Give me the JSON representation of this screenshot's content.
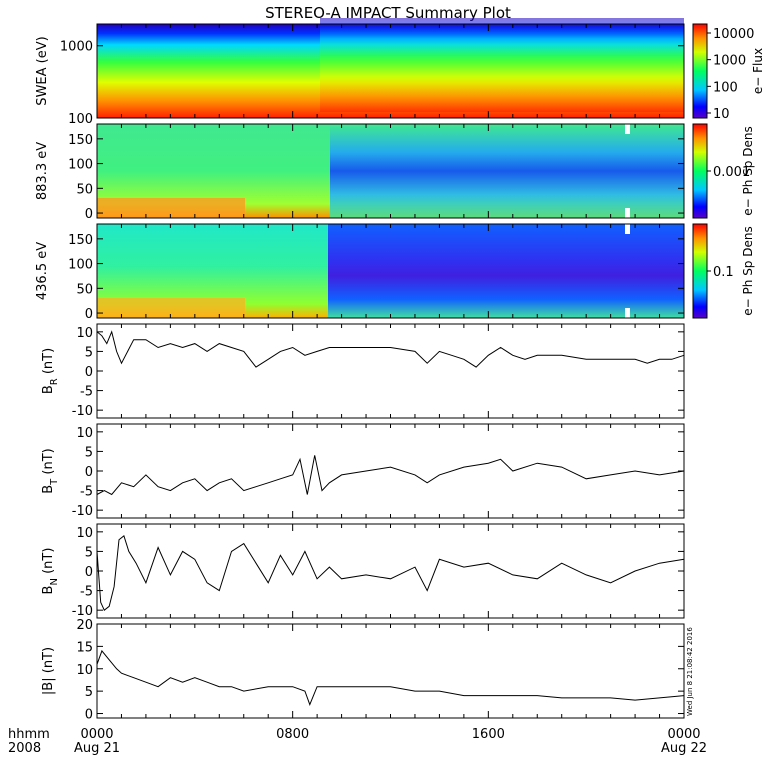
{
  "title": "STEREO-A IMPACT Summary Plot",
  "chart_data": [
    {
      "type": "heatmap",
      "ylabel": "SWEA (eV)",
      "ylog": true,
      "ylim": [
        100,
        2000
      ],
      "yticks": [
        "1000",
        "100"
      ],
      "colorbar": {
        "label": "e− Flux",
        "log": true,
        "ticks": [
          "10000",
          "1000",
          "100",
          "10"
        ]
      }
    },
    {
      "type": "heatmap",
      "ylabel": "883.3 eV",
      "ylim": [
        -10,
        180
      ],
      "yticks": [
        "150",
        "100",
        "50",
        "0"
      ],
      "colorbar": {
        "label": "e− Ph Sp Dens",
        "log": true,
        "ticks": [
          "0.001"
        ]
      }
    },
    {
      "type": "heatmap",
      "ylabel": "436.5 eV",
      "ylim": [
        -10,
        180
      ],
      "yticks": [
        "150",
        "100",
        "50",
        "0"
      ],
      "colorbar": {
        "label": "e− Ph Sp Dens",
        "log": true,
        "ticks": [
          "0.1"
        ]
      }
    },
    {
      "type": "line",
      "ylabel": "B",
      "ysub": "R",
      "yunit": " (nT)",
      "ylim": [
        -12,
        12
      ],
      "yticks": [
        "10",
        "5",
        "0",
        "-5",
        "-10"
      ],
      "series": [
        {
          "x": [
            0,
            0.2,
            0.4,
            0.6,
            0.8,
            1,
            1.5,
            2,
            2.5,
            3,
            3.5,
            4,
            4.5,
            5,
            5.5,
            6,
            6.5,
            7,
            7.5,
            8,
            8.5,
            9,
            9.5,
            10,
            11,
            12,
            13,
            13.5,
            14,
            14.5,
            15,
            15.5,
            16,
            16.5,
            17,
            17.5,
            18,
            19,
            20,
            21,
            22,
            22.5,
            23,
            23.5,
            24
          ],
          "y": [
            10,
            9,
            7,
            10,
            5,
            2,
            8,
            8,
            6,
            7,
            6,
            7,
            5,
            7,
            6,
            5,
            1,
            3,
            5,
            6,
            4,
            5,
            6,
            6,
            6,
            6,
            5,
            2,
            5,
            4,
            3,
            1,
            4,
            6,
            4,
            3,
            4,
            4,
            3,
            3,
            3,
            2,
            3,
            3,
            4
          ]
        }
      ]
    },
    {
      "type": "line",
      "ylabel": "B",
      "ysub": "T",
      "yunit": " (nT)",
      "ylim": [
        -12,
        12
      ],
      "yticks": [
        "10",
        "5",
        "0",
        "-5",
        "-10"
      ],
      "series": [
        {
          "x": [
            0,
            0.3,
            0.6,
            1,
            1.5,
            2,
            2.5,
            3,
            3.5,
            4,
            4.5,
            5,
            5.5,
            6,
            6.5,
            7,
            7.5,
            8,
            8.3,
            8.6,
            8.9,
            9.2,
            9.5,
            10,
            11,
            12,
            13,
            13.5,
            14,
            15,
            16,
            16.5,
            17,
            18,
            19,
            20,
            21,
            22,
            23,
            24
          ],
          "y": [
            -6,
            -5,
            -6,
            -3,
            -4,
            -1,
            -4,
            -5,
            -3,
            -2,
            -5,
            -3,
            -2,
            -5,
            -4,
            -3,
            -2,
            -1,
            3,
            -6,
            4,
            -5,
            -3,
            -1,
            0,
            1,
            -1,
            -3,
            -1,
            1,
            2,
            3,
            0,
            2,
            1,
            -2,
            -1,
            0,
            -1,
            0
          ]
        }
      ]
    },
    {
      "type": "line",
      "ylabel": "B",
      "ysub": "N",
      "yunit": " (nT)",
      "ylim": [
        -12,
        12
      ],
      "yticks": [
        "10",
        "5",
        "0",
        "-5",
        "-10"
      ],
      "series": [
        {
          "x": [
            0,
            0.15,
            0.3,
            0.5,
            0.7,
            0.9,
            1.1,
            1.3,
            1.6,
            2,
            2.5,
            3,
            3.5,
            4,
            4.5,
            5,
            5.5,
            6,
            6.5,
            7,
            7.5,
            8,
            8.5,
            9,
            9.5,
            10,
            11,
            12,
            13,
            13.5,
            14,
            15,
            16,
            17,
            18,
            19,
            20,
            21,
            22,
            23,
            24
          ],
          "y": [
            5,
            -8,
            -10,
            -9,
            -4,
            8,
            9,
            5,
            2,
            -3,
            6,
            -1,
            5,
            3,
            -3,
            -5,
            5,
            7,
            2,
            -3,
            4,
            -1,
            5,
            -2,
            1,
            -2,
            -1,
            -2,
            1,
            -5,
            3,
            1,
            2,
            -1,
            -2,
            2,
            -1,
            -3,
            0,
            2,
            3
          ]
        }
      ]
    },
    {
      "type": "line",
      "ylabel": "|B|",
      "yunit": " (nT)",
      "ylim": [
        -1,
        20
      ],
      "yticks": [
        "20",
        "15",
        "10",
        "5",
        "0"
      ],
      "series": [
        {
          "x": [
            0,
            0.2,
            0.5,
            0.8,
            1,
            1.5,
            2,
            2.5,
            3,
            3.5,
            4,
            4.5,
            5,
            5.5,
            6,
            7,
            8,
            8.5,
            8.7,
            9,
            10,
            11,
            12,
            13,
            14,
            15,
            16,
            17,
            18,
            19,
            20,
            21,
            22,
            23,
            24
          ],
          "y": [
            11,
            14,
            12,
            10,
            9,
            8,
            7,
            6,
            8,
            7,
            8,
            7,
            6,
            6,
            5,
            6,
            6,
            5,
            2,
            6,
            6,
            6,
            6,
            5,
            5,
            4,
            4,
            4,
            4,
            3.5,
            3.5,
            3.5,
            3,
            3.5,
            4
          ]
        }
      ]
    }
  ],
  "xaxis": {
    "ticks": [
      {
        "t": 0,
        "time": "0000",
        "date": "Aug 21"
      },
      {
        "t": 8,
        "time": "0800",
        "date": ""
      },
      {
        "t": 16,
        "time": "1600",
        "date": ""
      },
      {
        "t": 24,
        "time": "0000",
        "date": "Aug 22"
      }
    ],
    "row_label_time": "hhmm",
    "row_label_year": "2008"
  },
  "timestamp": "Wed Jun  8 21:08:42 2016"
}
